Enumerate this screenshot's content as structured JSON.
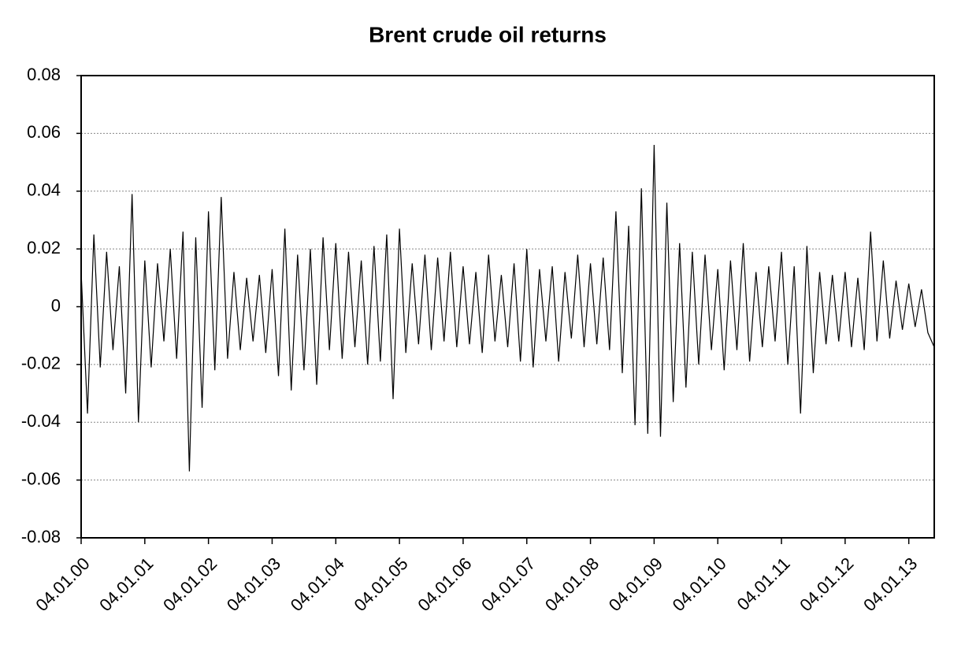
{
  "chart_data": {
    "type": "line",
    "title": "Brent crude oil returns",
    "color": "#000000",
    "categories": [
      "04.01.00",
      null,
      null,
      null,
      null,
      null,
      null,
      null,
      null,
      null,
      "04.01.01",
      null,
      null,
      null,
      null,
      null,
      null,
      null,
      null,
      null,
      "04.01.02",
      null,
      null,
      null,
      null,
      null,
      null,
      null,
      null,
      null,
      "04.01.03",
      null,
      null,
      null,
      null,
      null,
      null,
      null,
      null,
      null,
      "04.01.04",
      null,
      null,
      null,
      null,
      null,
      null,
      null,
      null,
      null,
      "04.01.05",
      null,
      null,
      null,
      null,
      null,
      null,
      null,
      null,
      null,
      "04.01.06",
      null,
      null,
      null,
      null,
      null,
      null,
      null,
      null,
      null,
      "04.01.07",
      null,
      null,
      null,
      null,
      null,
      null,
      null,
      null,
      null,
      "04.01.08",
      null,
      null,
      null,
      null,
      null,
      null,
      null,
      null,
      null,
      "04.01.09",
      null,
      null,
      null,
      null,
      null,
      null,
      null,
      null,
      null,
      "04.01.10",
      null,
      null,
      null,
      null,
      null,
      null,
      null,
      null,
      null,
      "04.01.11",
      null,
      null,
      null,
      null,
      null,
      null,
      null,
      null,
      null,
      "04.01.12",
      null,
      null,
      null,
      null,
      null,
      null,
      null,
      null,
      null,
      "04.01.13",
      null,
      null,
      null,
      null
    ],
    "values": [
      0.012,
      -0.037,
      0.025,
      -0.021,
      0.019,
      -0.015,
      0.014,
      -0.03,
      0.039,
      -0.04,
      0.016,
      -0.021,
      0.015,
      -0.012,
      0.02,
      -0.018,
      0.026,
      -0.057,
      0.024,
      -0.035,
      0.033,
      -0.022,
      0.038,
      -0.018,
      0.012,
      -0.015,
      0.01,
      -0.012,
      0.011,
      -0.016,
      0.013,
      -0.024,
      0.027,
      -0.029,
      0.018,
      -0.022,
      0.02,
      -0.027,
      0.024,
      -0.015,
      0.022,
      -0.018,
      0.019,
      -0.014,
      0.016,
      -0.02,
      0.021,
      -0.019,
      0.025,
      -0.032,
      0.027,
      -0.016,
      0.015,
      -0.013,
      0.018,
      -0.015,
      0.017,
      -0.012,
      0.019,
      -0.014,
      0.014,
      -0.013,
      0.012,
      -0.016,
      0.018,
      -0.012,
      0.011,
      -0.014,
      0.015,
      -0.019,
      0.02,
      -0.021,
      0.013,
      -0.012,
      0.014,
      -0.019,
      0.012,
      -0.011,
      0.018,
      -0.014,
      0.015,
      -0.013,
      0.017,
      -0.015,
      0.033,
      -0.023,
      0.028,
      -0.041,
      0.041,
      -0.044,
      0.056,
      -0.045,
      0.036,
      -0.033,
      0.022,
      -0.028,
      0.019,
      -0.02,
      0.018,
      -0.015,
      0.013,
      -0.022,
      0.016,
      -0.015,
      0.022,
      -0.019,
      0.012,
      -0.014,
      0.014,
      -0.012,
      0.019,
      -0.02,
      0.014,
      -0.037,
      0.021,
      -0.023,
      0.012,
      -0.013,
      0.011,
      -0.012,
      0.012,
      -0.014,
      0.01,
      -0.015,
      0.026,
      -0.012,
      0.016,
      -0.011,
      0.009,
      -0.008,
      0.008,
      -0.007,
      0.006,
      -0.009,
      -0.014
    ],
    "ylim": [
      -0.08,
      0.08
    ],
    "yticks": [
      -0.08,
      -0.06,
      -0.04,
      -0.02,
      0,
      0.02,
      0.04,
      0.06,
      0.08
    ],
    "grid": true
  }
}
